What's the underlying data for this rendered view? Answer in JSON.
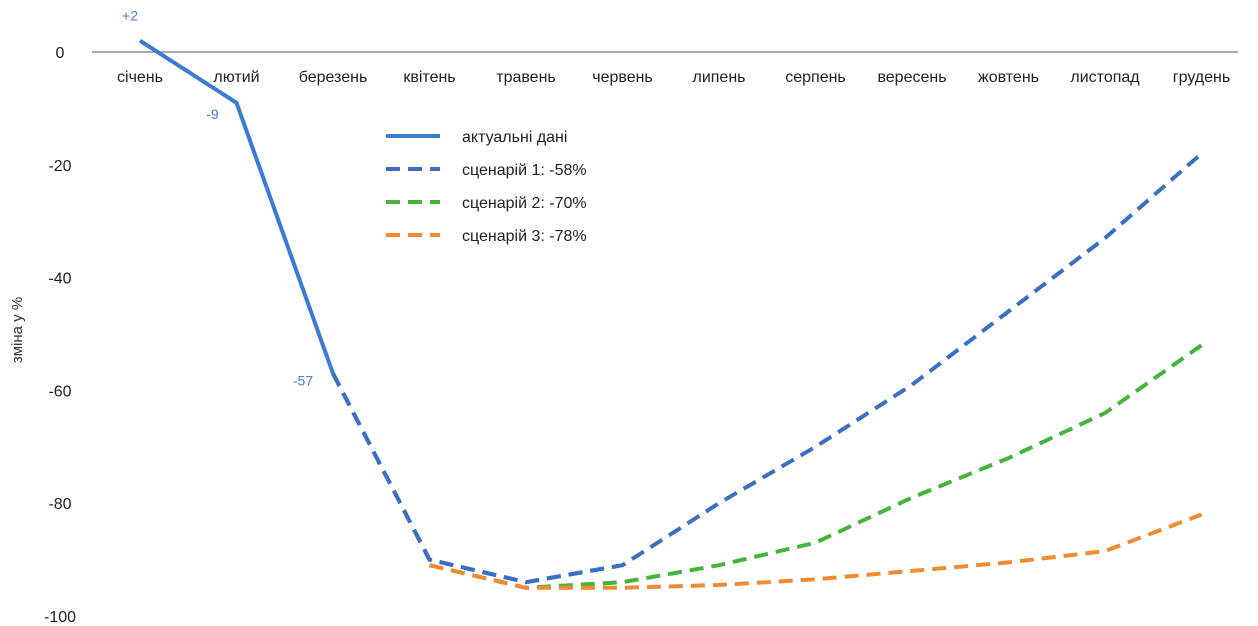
{
  "chart_data": {
    "type": "line",
    "title": "",
    "xlabel": "",
    "ylabel": "зміна у %",
    "ylim": [
      -100,
      0
    ],
    "yticks": [
      0,
      -20,
      -40,
      -60,
      -80,
      -100
    ],
    "grid": false,
    "legend_position": "center",
    "categories": [
      "січень",
      "лютий",
      "березень",
      "квітень",
      "травень",
      "червень",
      "липень",
      "серпень",
      "вересень",
      "жовтень",
      "листопад",
      "грудень"
    ],
    "series": [
      {
        "name": "актуальні дані",
        "color": "#3a7bd5",
        "style": "solid",
        "x": [
          "січень",
          "лютий",
          "березень"
        ],
        "values": [
          2,
          -9,
          -57
        ]
      },
      {
        "name": "сценарій 1: -58%",
        "color": "#3a6fc4",
        "style": "dashed",
        "x": [
          "березень",
          "квітень",
          "травень",
          "червень",
          "липень",
          "серпень",
          "вересень",
          "жовтень",
          "листопад",
          "грудень"
        ],
        "values": [
          -57,
          -90,
          -94,
          -91,
          -80,
          -70,
          -59,
          -46,
          -33,
          -18
        ]
      },
      {
        "name": "сценарій 2: -70%",
        "color": "#44b53a",
        "style": "dashed",
        "x": [
          "квітень",
          "травень",
          "червень",
          "липень",
          "серпень",
          "вересень",
          "жовтень",
          "листопад",
          "грудень"
        ],
        "values": [
          -91,
          -95,
          -94,
          -91,
          -87,
          -79,
          -72,
          -64,
          -52
        ]
      },
      {
        "name": "сценарій 3: -78%",
        "color": "#f28b30",
        "style": "dashed",
        "x": [
          "квітень",
          "травень",
          "червень",
          "липень",
          "серпень",
          "вересень",
          "жовтень",
          "листопад",
          "грудень"
        ],
        "values": [
          -91,
          -95,
          -95,
          -94.5,
          -93.5,
          -92,
          -90.5,
          -88.5,
          -82
        ]
      }
    ],
    "data_labels": [
      {
        "text": "+2",
        "x": "січень",
        "y": 2
      },
      {
        "text": "-9",
        "x": "лютий",
        "y": -9
      },
      {
        "text": "-57",
        "x": "березень",
        "y": -57
      }
    ]
  }
}
